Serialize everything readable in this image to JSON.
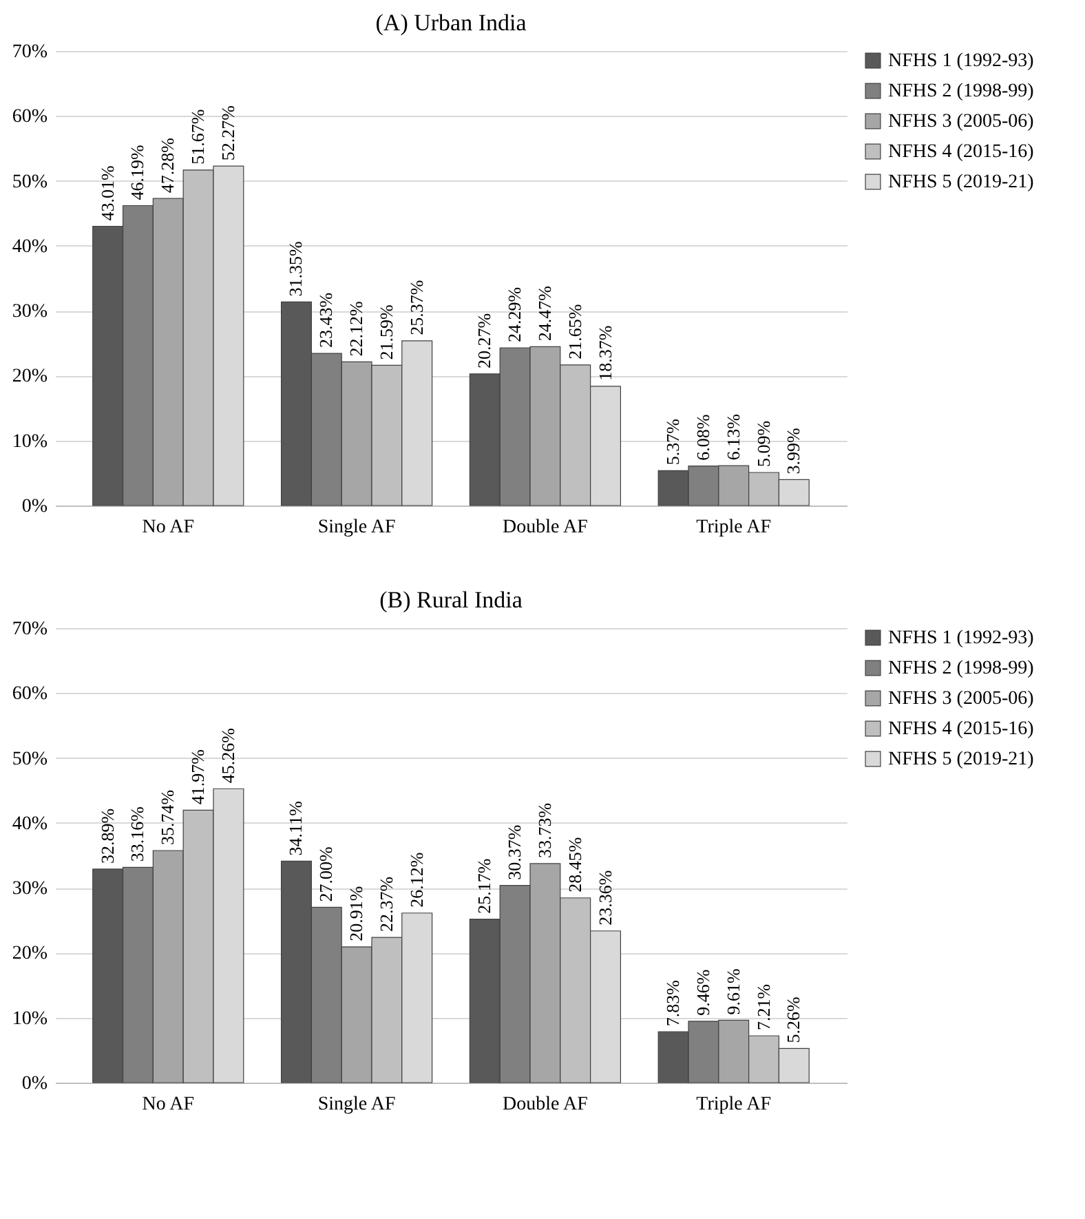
{
  "chart_data": [
    {
      "type": "bar",
      "title": "(A) Urban India",
      "categories": [
        "No AF",
        "Single AF",
        "Double AF",
        "Triple AF"
      ],
      "series": [
        {
          "name": "NFHS 1 (1992-93)",
          "color": "#595959",
          "values": [
            43.01,
            31.35,
            20.27,
            5.37
          ],
          "value_labels": [
            "43.01%",
            "31.35%",
            "20.27%",
            "5.37%"
          ]
        },
        {
          "name": "NFHS 2 (1998-99)",
          "color": "#808080",
          "values": [
            46.19,
            23.43,
            24.29,
            6.08
          ],
          "value_labels": [
            "46.19%",
            "23.43%",
            "24.29%",
            "6.08%"
          ]
        },
        {
          "name": "NFHS 3 (2005-06)",
          "color": "#a6a6a6",
          "values": [
            47.28,
            22.12,
            24.47,
            6.13
          ],
          "value_labels": [
            "47.28%",
            "22.12%",
            "24.47%",
            "6.13%"
          ]
        },
        {
          "name": "NFHS 4 (2015-16)",
          "color": "#bfbfbf",
          "values": [
            51.67,
            21.59,
            21.65,
            5.09
          ],
          "value_labels": [
            "51.67%",
            "21.59%",
            "21.65%",
            "5.09%"
          ]
        },
        {
          "name": "NFHS 5 (2019-21)",
          "color": "#d9d9d9",
          "values": [
            52.27,
            25.37,
            18.37,
            3.99
          ],
          "value_labels": [
            "52.27%",
            "25.37%",
            "18.37%",
            "3.99%"
          ]
        }
      ],
      "ylim": [
        0,
        70
      ],
      "yticks": [
        {
          "value": 0,
          "label": "0%"
        },
        {
          "value": 10,
          "label": "10%"
        },
        {
          "value": 20,
          "label": "20%"
        },
        {
          "value": 30,
          "label": "30%"
        },
        {
          "value": 40,
          "label": "40%"
        },
        {
          "value": 50,
          "label": "50%"
        },
        {
          "value": 60,
          "label": "60%"
        },
        {
          "value": 70,
          "label": "70%"
        }
      ],
      "grid": "y",
      "legend": "right"
    },
    {
      "type": "bar",
      "title": "(B) Rural India",
      "categories": [
        "No AF",
        "Single AF",
        "Double AF",
        "Triple AF"
      ],
      "series": [
        {
          "name": "NFHS 1 (1992-93)",
          "color": "#595959",
          "values": [
            32.89,
            34.11,
            25.17,
            7.83
          ],
          "value_labels": [
            "32.89%",
            "34.11%",
            "25.17%",
            "7.83%"
          ]
        },
        {
          "name": "NFHS 2 (1998-99)",
          "color": "#808080",
          "values": [
            33.16,
            27.0,
            30.37,
            9.46
          ],
          "value_labels": [
            "33.16%",
            "27.00%",
            "30.37%",
            "9.46%"
          ]
        },
        {
          "name": "NFHS 3 (2005-06)",
          "color": "#a6a6a6",
          "values": [
            35.74,
            20.91,
            33.73,
            9.61
          ],
          "value_labels": [
            "35.74%",
            "20.91%",
            "33.73%",
            "9.61%"
          ]
        },
        {
          "name": "NFHS 4 (2015-16)",
          "color": "#bfbfbf",
          "values": [
            41.97,
            22.37,
            28.45,
            7.21
          ],
          "value_labels": [
            "41.97%",
            "22.37%",
            "28.45%",
            "7.21%"
          ]
        },
        {
          "name": "NFHS 5 (2019-21)",
          "color": "#d9d9d9",
          "values": [
            45.26,
            26.12,
            23.36,
            5.26
          ],
          "value_labels": [
            "45.26%",
            "26.12%",
            "23.36%",
            "5.26%"
          ]
        }
      ],
      "ylim": [
        0,
        70
      ],
      "yticks": [
        {
          "value": 0,
          "label": "0%"
        },
        {
          "value": 10,
          "label": "10%"
        },
        {
          "value": 20,
          "label": "20%"
        },
        {
          "value": 30,
          "label": "30%"
        },
        {
          "value": 40,
          "label": "40%"
        },
        {
          "value": 50,
          "label": "50%"
        },
        {
          "value": 60,
          "label": "60%"
        },
        {
          "value": 70,
          "label": "70%"
        }
      ],
      "grid": "y",
      "legend": "right"
    }
  ]
}
